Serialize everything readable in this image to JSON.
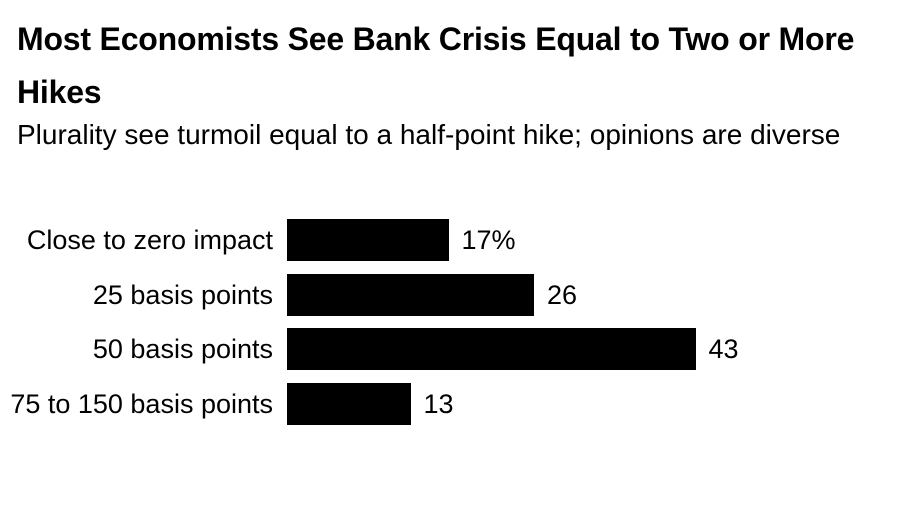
{
  "page": {
    "background_color": "#ffffff",
    "text_color": "#000000"
  },
  "header": {
    "title_line1": "Most Economists See Bank Crisis Equal to Two or More",
    "title_line2": "Hikes",
    "title_full": "Most Economists See Bank Crisis Equal to Two or More Hikes",
    "subtitle": "Plurality see turmoil equal to a half-point hike; opinions are diverse"
  },
  "chart_data": {
    "type": "bar",
    "orientation": "horizontal",
    "title": "Most Economists See Bank Crisis Equal to Two or More Hikes",
    "subtitle": "Plurality see turmoil equal to a half-point hike; opinions are diverse",
    "categories": [
      "Close to zero impact",
      "25 basis points",
      "50 basis points",
      "75 to 150 basis points"
    ],
    "values": [
      17,
      26,
      43,
      13
    ],
    "value_labels": [
      "17%",
      "26",
      "43",
      "13"
    ],
    "unit": "percent",
    "xlabel": "",
    "ylabel": "",
    "xlim": [
      0,
      43
    ],
    "grid": false,
    "legend": false,
    "bar_color": "#000000",
    "label_color": "#000000"
  }
}
